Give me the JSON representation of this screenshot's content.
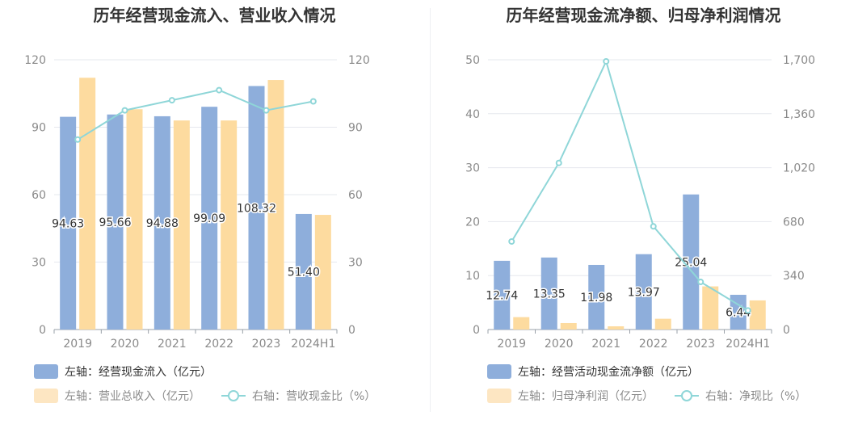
{
  "colors": {
    "primary": "#8eaedb",
    "secondary": "#fddb9f",
    "line": "#8fd6d8",
    "axis_text": "#8a8a8a",
    "grid": "#e6e8ee"
  },
  "chart_data": [
    {
      "type": "bar",
      "title": "历年经营现金流入、营业收入情况",
      "categories": [
        "2019",
        "2020",
        "2021",
        "2022",
        "2023",
        "2024H1"
      ],
      "left_axis": {
        "ylim": [
          0,
          120
        ],
        "ticks": [
          "0",
          "30",
          "60",
          "90",
          "120"
        ]
      },
      "right_axis": {
        "ylim": [
          0,
          120
        ],
        "ticks": [
          "0",
          "30",
          "60",
          "90",
          "120"
        ]
      },
      "series": [
        {
          "name": "左轴：经营现金流入（亿元）",
          "axis": "left",
          "kind": "bar",
          "color": "#8eaedb",
          "values": [
            94.63,
            95.66,
            94.88,
            99.09,
            108.32,
            51.4
          ],
          "labels": [
            "94.63",
            "95.66",
            "94.88",
            "99.09",
            "108.32",
            "51.40"
          ]
        },
        {
          "name": "左轴：营业总收入（亿元）",
          "axis": "left",
          "kind": "bar",
          "color": "#fddb9f",
          "values": [
            112,
            98,
            93,
            93,
            111,
            51
          ]
        },
        {
          "name": "右轴：营收现金比（%）",
          "axis": "right",
          "kind": "line",
          "color": "#8fd6d8",
          "values": [
            84.5,
            97.5,
            102,
            106.5,
            97.5,
            101.5
          ]
        }
      ],
      "legend_position": "bottom",
      "grid": true
    },
    {
      "type": "bar",
      "title": "历年经营现金流净额、归母净利润情况",
      "categories": [
        "2019",
        "2020",
        "2021",
        "2022",
        "2023",
        "2024H1"
      ],
      "left_axis": {
        "ylim": [
          0,
          50
        ],
        "ticks": [
          "0",
          "10",
          "20",
          "30",
          "40",
          "50"
        ]
      },
      "right_axis": {
        "ylim": [
          0,
          1700
        ],
        "ticks": [
          "0",
          "340",
          "680",
          "1,020",
          "1,360",
          "1,700"
        ]
      },
      "series": [
        {
          "name": "左轴：经营活动现金流净额（亿元）",
          "axis": "left",
          "kind": "bar",
          "color": "#8eaedb",
          "values": [
            12.74,
            13.35,
            11.98,
            13.97,
            25.04,
            6.44
          ],
          "labels": [
            "12.74",
            "13.35",
            "11.98",
            "13.97",
            "25.04",
            "6.44"
          ]
        },
        {
          "name": "左轴：归母净利润（亿元）",
          "axis": "left",
          "kind": "bar",
          "color": "#fddb9f",
          "values": [
            2.3,
            1.2,
            0.6,
            2.0,
            8.0,
            5.4
          ]
        },
        {
          "name": "右轴：净现比（%）",
          "axis": "right",
          "kind": "line",
          "color": "#8fd6d8",
          "values": [
            555,
            1050,
            1690,
            650,
            300,
            120
          ]
        }
      ],
      "legend_position": "bottom",
      "grid": true
    }
  ]
}
